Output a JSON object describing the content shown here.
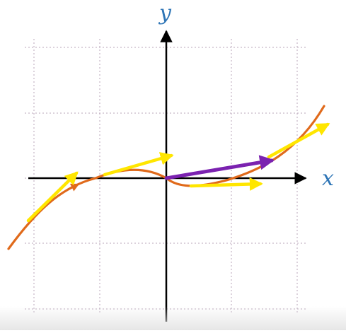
{
  "labels": {
    "x_axis": "x",
    "y_axis": "y"
  },
  "colors": {
    "grid": "#b9a6ba",
    "axis": "#000000",
    "axis_label": "#2e75b6",
    "curve": "#e06a1b",
    "tangent": "#ffe600",
    "highlight_vector": "#7b22b0"
  }
}
